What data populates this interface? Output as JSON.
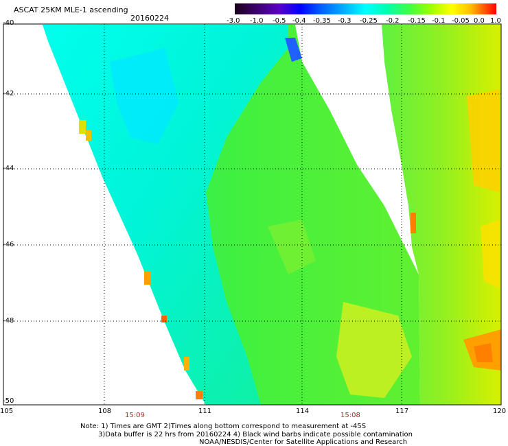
{
  "header": {
    "title": "ASCAT 25KM MLE-1 ascending",
    "date": "20160224"
  },
  "colorbar": {
    "labels": [
      "-3.0",
      "-1.0",
      "-0.5",
      "-0.4",
      "-0.35",
      "-0.3",
      "-0.25",
      "-0.2",
      "-0.15",
      "-0.1",
      "-0.05",
      "0.0",
      "1.0"
    ],
    "colors": [
      "#1a001a",
      "#3a0068",
      "#5a00c8",
      "#0000ff",
      "#0060ff",
      "#00b0ff",
      "#00ffff",
      "#00ffb0",
      "#40ff40",
      "#a0ff00",
      "#ffff00",
      "#ffc000",
      "#ff6000",
      "#ff0000"
    ]
  },
  "axes": {
    "y_labels": [
      "-40",
      "-42",
      "-44",
      "-46",
      "-48",
      "-50"
    ],
    "x_labels": [
      "105",
      "108",
      "111",
      "114",
      "117",
      "120"
    ],
    "time_labels": [
      "15:09",
      "15:08"
    ]
  },
  "notes": {
    "line1": "Note: 1) Times are GMT 2)Times along bottom correspond to measurement at -45S",
    "line2": "3)Data buffer is 22 hrs from 20160224 4) Black wind barbs indicate possible contamination",
    "line3": "NOAA/NESDIS/Center for Satellite Applications and Research"
  }
}
